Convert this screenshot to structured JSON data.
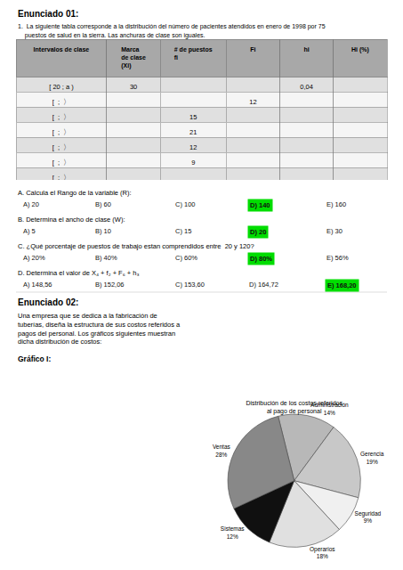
{
  "chart_data": {
    "type": "pie",
    "title": "Distribución de los costos referidos\nal pago de personal",
    "categories": [
      "Administración",
      "Gerencia",
      "Seguridad",
      "Operarios",
      "Sistemas",
      "Ventas"
    ],
    "values": [
      14,
      19,
      9,
      18,
      12,
      28
    ],
    "value_labels": [
      "14%",
      "19%",
      "9%",
      "18%",
      "12%",
      "28%"
    ],
    "colors": [
      "#b8b8b8",
      "#c8c8c8",
      "#f0f0f0",
      "#e0e0e0",
      "#101010",
      "#888888"
    ],
    "data_labels": true,
    "annotations": [
      "Enunciado 01:",
      "1.  La siguiente tabla corresponde a la distribución del número de pacientes atendidos en enero de 1998 por 75",
      "    puestos de salud en la sierra. Las anchuras de clase son iguales.",
      "Enunciado 02:",
      "Una empresa que se dedica a la fabricación de\ntuberías, diseña la estructura de sus costos referidos a\npagos del personal. Los gráficos siguientes muestran\ndicha distribución de costos:",
      "Gráfico I:"
    ],
    "table": {
      "headers": [
        "Intervalos de clase",
        "Marca\nde clase\n(Xi)",
        "# de puestos\nfi",
        "Fi",
        "hi",
        "Hi (%)"
      ],
      "rows": [
        [
          "[ 20 ; a )",
          "30",
          null,
          null,
          "0,04",
          null
        ],
        [
          "[  ;  〉",
          null,
          null,
          "12",
          null,
          null
        ],
        [
          "[  ;  〉",
          null,
          "15",
          null,
          null,
          null
        ],
        [
          "[  ;  〉",
          null,
          "21",
          null,
          null,
          null
        ],
        [
          "[  ;  〉",
          null,
          "12",
          null,
          null,
          null
        ],
        [
          "[  ;  〉",
          null,
          "9",
          null,
          null,
          null
        ],
        [
          "[  ;  〉",
          null,
          null,
          null,
          null,
          null
        ]
      ]
    },
    "questions": [
      {
        "label": "A. Calcula el Rango de la variable (R):",
        "options": [
          "A) 20",
          "B) 60",
          "C) 100",
          "D) 140",
          "E) 160"
        ],
        "answer": "D) 140",
        "color": "#00dd00"
      },
      {
        "label": "B. Determina el ancho de clase (W):",
        "options": [
          "A) 5",
          "B) 10",
          "C) 15",
          "D) 20",
          "E) 30"
        ],
        "answer": "D) 20",
        "color": "#00dd00"
      },
      {
        "label": "C. ¿Qué porcentaje de puestos de trabajo estan comprendidos entre  20 y 120?",
        "options": [
          "A) 20%",
          "B) 40%",
          "C) 60%",
          "D) 80%",
          "E) 56%"
        ],
        "answer": "D) 80%",
        "color": "#00dd00"
      },
      {
        "label": "D. Determina el valor de X₄ + f₂ + F₆ + h₃",
        "options": [
          "A) 148,56",
          "B) 152,06",
          "C) 153,60",
          "D) 164,72",
          "E) 168,20"
        ],
        "answer": "E) 168,20",
        "color": "#00dd00"
      }
    ]
  }
}
